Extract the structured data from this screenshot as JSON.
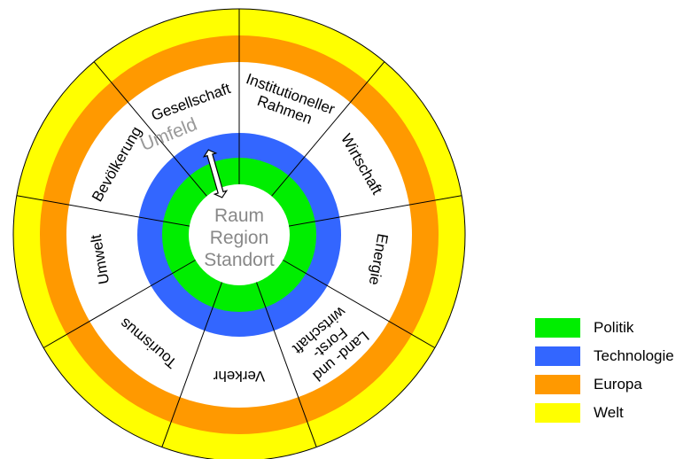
{
  "center": {
    "lines": [
      "Raum",
      "Region",
      "Standort"
    ]
  },
  "umfeld_label": "Umfeld",
  "segments": [
    {
      "lines": [
        "Gesellschaft"
      ]
    },
    {
      "lines": [
        "Institutioneller",
        "Rahmen"
      ]
    },
    {
      "lines": [
        "Wirtschaft"
      ]
    },
    {
      "lines": [
        "Energie"
      ]
    },
    {
      "lines": [
        "Land- und",
        "Forst-",
        "wirtschaft"
      ]
    },
    {
      "lines": [
        "Verkehr"
      ]
    },
    {
      "lines": [
        "Tourismus"
      ]
    },
    {
      "lines": [
        "Umwelt"
      ]
    },
    {
      "lines": [
        "Bevölkerung"
      ]
    }
  ],
  "legend": [
    {
      "label": "Politik",
      "color": "#00ee00"
    },
    {
      "label": "Technologie",
      "color": "#3366ff"
    },
    {
      "label": "Europa",
      "color": "#ff9900"
    },
    {
      "label": "Welt",
      "color": "#ffff00"
    }
  ]
}
